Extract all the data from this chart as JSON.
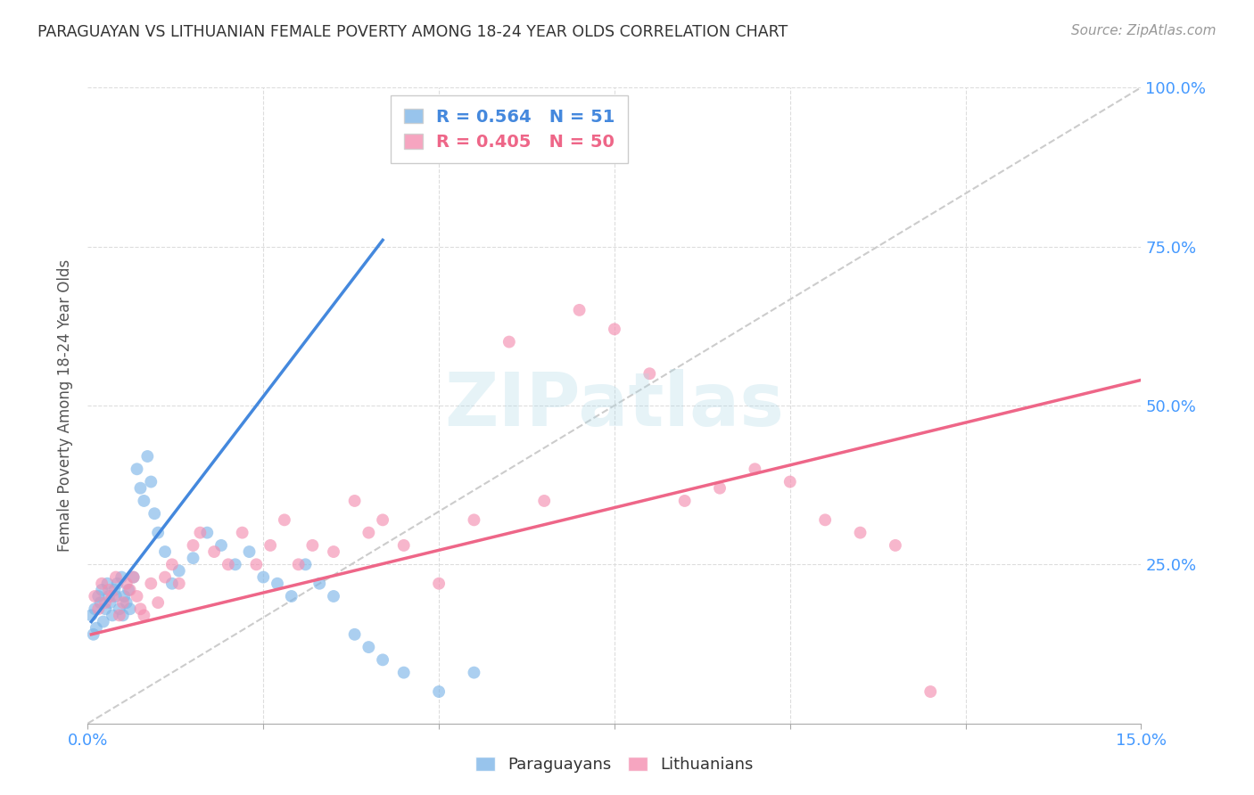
{
  "title": "PARAGUAYAN VS LITHUANIAN FEMALE POVERTY AMONG 18-24 YEAR OLDS CORRELATION CHART",
  "source": "Source: ZipAtlas.com",
  "ylabel": "Female Poverty Among 18-24 Year Olds",
  "xlim": [
    0.0,
    15.0
  ],
  "ylim": [
    0.0,
    100.0
  ],
  "yticks": [
    0,
    25,
    50,
    75,
    100
  ],
  "ytick_labels_right": [
    "",
    "25.0%",
    "50.0%",
    "75.0%",
    "100.0%"
  ],
  "legend_blue_text": "R = 0.564   N = 51",
  "legend_pink_text": "R = 0.405   N = 50",
  "legend_label_blue": "Paraguayans",
  "legend_label_pink": "Lithuanians",
  "blue_color": "#7EB6E8",
  "pink_color": "#F48FB1",
  "blue_line_color": "#4488DD",
  "pink_line_color": "#EE6688",
  "title_color": "#333333",
  "axis_tick_color": "#4499FF",
  "grid_color": "#DDDDDD",
  "ref_line_color": "#CCCCCC",
  "par_x": [
    0.05,
    0.08,
    0.1,
    0.12,
    0.15,
    0.18,
    0.2,
    0.22,
    0.25,
    0.28,
    0.3,
    0.32,
    0.35,
    0.38,
    0.4,
    0.42,
    0.45,
    0.48,
    0.5,
    0.52,
    0.55,
    0.58,
    0.6,
    0.65,
    0.7,
    0.75,
    0.8,
    0.85,
    0.9,
    0.95,
    1.0,
    1.1,
    1.2,
    1.3,
    1.5,
    1.7,
    1.9,
    2.1,
    2.3,
    2.5,
    2.7,
    2.9,
    3.1,
    3.3,
    3.5,
    3.8,
    4.0,
    4.2,
    4.5,
    5.0,
    5.5
  ],
  "par_y": [
    17,
    14,
    18,
    15,
    20,
    19,
    21,
    16,
    18,
    22,
    20,
    19,
    17,
    21,
    20,
    22,
    18,
    23,
    17,
    20,
    19,
    21,
    18,
    23,
    40,
    37,
    35,
    42,
    38,
    33,
    30,
    27,
    22,
    24,
    26,
    30,
    28,
    25,
    27,
    23,
    22,
    20,
    25,
    22,
    20,
    14,
    12,
    10,
    8,
    5,
    8
  ],
  "lit_x": [
    0.1,
    0.15,
    0.2,
    0.25,
    0.3,
    0.35,
    0.4,
    0.45,
    0.5,
    0.55,
    0.6,
    0.65,
    0.7,
    0.75,
    0.8,
    0.9,
    1.0,
    1.1,
    1.2,
    1.3,
    1.5,
    1.6,
    1.8,
    2.0,
    2.2,
    2.4,
    2.6,
    2.8,
    3.0,
    3.2,
    3.5,
    3.8,
    4.0,
    4.2,
    4.5,
    5.0,
    5.5,
    6.0,
    6.5,
    7.0,
    7.5,
    8.0,
    8.5,
    9.0,
    9.5,
    10.0,
    10.5,
    11.0,
    11.5,
    12.0
  ],
  "lit_y": [
    20,
    18,
    22,
    19,
    21,
    20,
    23,
    17,
    19,
    22,
    21,
    23,
    20,
    18,
    17,
    22,
    19,
    23,
    25,
    22,
    28,
    30,
    27,
    25,
    30,
    25,
    28,
    32,
    25,
    28,
    27,
    35,
    30,
    32,
    28,
    22,
    32,
    60,
    35,
    65,
    62,
    55,
    35,
    37,
    40,
    38,
    32,
    30,
    28,
    5
  ],
  "blue_line_x": [
    0.05,
    4.2
  ],
  "blue_line_y": [
    16,
    76
  ],
  "pink_line_x": [
    0.05,
    15.0
  ],
  "pink_line_y": [
    14,
    54
  ],
  "ref_line_x": [
    0.0,
    15.0
  ],
  "ref_line_y": [
    0.0,
    100.0
  ]
}
